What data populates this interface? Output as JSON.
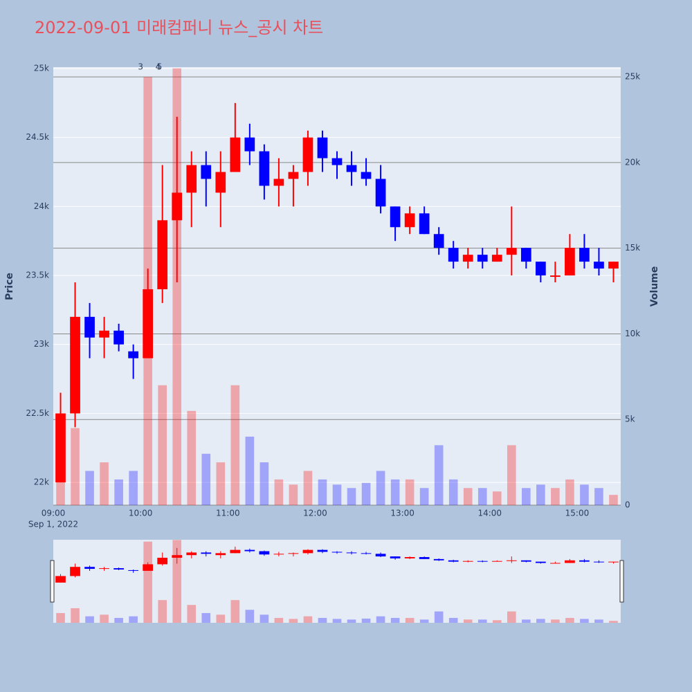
{
  "chart_data": {
    "type": "candlestick",
    "title": "2022-09-01 미래컴퍼니 뉴스_공시 차트",
    "y_label": "Price",
    "y2_label": "Volume",
    "x_date_label": "Sep 1, 2022",
    "x": [
      "09:00",
      "09:10",
      "09:20",
      "09:30",
      "09:40",
      "09:50",
      "10:00",
      "10:10",
      "10:20",
      "10:30",
      "10:40",
      "10:50",
      "11:00",
      "11:10",
      "11:20",
      "11:30",
      "11:40",
      "11:50",
      "12:00",
      "12:10",
      "12:20",
      "12:30",
      "12:40",
      "12:50",
      "13:00",
      "13:10",
      "13:20",
      "13:30",
      "13:40",
      "13:50",
      "14:00",
      "14:10",
      "14:20",
      "14:30",
      "14:40",
      "14:50",
      "15:00",
      "15:10",
      "15:20"
    ],
    "open": [
      22000,
      22500,
      23200,
      23050,
      23100,
      22950,
      22900,
      23400,
      23900,
      24100,
      24300,
      24100,
      24250,
      24500,
      24400,
      24150,
      24200,
      24250,
      24500,
      24350,
      24300,
      24250,
      24200,
      24000,
      23850,
      23950,
      23800,
      23700,
      23600,
      23650,
      23600,
      23650,
      23700,
      23600,
      23500,
      23500,
      23700,
      23600,
      23550
    ],
    "high": [
      22650,
      23450,
      23300,
      23200,
      23150,
      23000,
      23550,
      24300,
      24650,
      24400,
      24400,
      24400,
      24750,
      24600,
      24450,
      24350,
      24300,
      24550,
      24550,
      24400,
      24400,
      24350,
      24300,
      24000,
      24000,
      24000,
      23850,
      23750,
      23700,
      23700,
      23700,
      24000,
      23700,
      23600,
      23600,
      23800,
      23800,
      23700,
      23600
    ],
    "low": [
      22000,
      22400,
      22900,
      22900,
      22950,
      22750,
      22900,
      23300,
      23450,
      23850,
      24000,
      23850,
      24250,
      24300,
      24050,
      24000,
      24000,
      24150,
      24250,
      24200,
      24150,
      24150,
      23950,
      23750,
      23800,
      23800,
      23650,
      23550,
      23550,
      23550,
      23600,
      23500,
      23550,
      23450,
      23450,
      23500,
      23550,
      23500,
      23450
    ],
    "close": [
      22500,
      23200,
      23050,
      23100,
      23000,
      22900,
      23400,
      23900,
      24100,
      24300,
      24200,
      24250,
      24500,
      24400,
      24150,
      24200,
      24250,
      24500,
      24350,
      24300,
      24250,
      24200,
      24000,
      23850,
      23950,
      23800,
      23700,
      23600,
      23650,
      23600,
      23650,
      23700,
      23600,
      23500,
      23500,
      23700,
      23600,
      23550,
      23600
    ],
    "volume": [
      3000,
      4500,
      2000,
      2500,
      1500,
      2000,
      25000,
      7000,
      25500,
      5500,
      3000,
      2500,
      7000,
      4000,
      2500,
      1500,
      1200,
      2000,
      1500,
      1200,
      1000,
      1300,
      2000,
      1500,
      1500,
      1000,
      3500,
      1500,
      1000,
      1000,
      800,
      3500,
      1000,
      1200,
      1000,
      1500,
      1200,
      1000,
      600
    ],
    "increasing_color": "#ff0000",
    "decreasing_color": "#0000ff",
    "xlim": [
      "09:00",
      "15:30"
    ],
    "xticks": [
      "09:00",
      "10:00",
      "11:00",
      "12:00",
      "13:00",
      "14:00",
      "15:00"
    ],
    "ylim": [
      21835,
      25010
    ],
    "yticks": [
      {
        "value": 22000,
        "label": "22k"
      },
      {
        "value": 22500,
        "label": "22.5k"
      },
      {
        "value": 23000,
        "label": "23k"
      },
      {
        "value": 23500,
        "label": "23.5k"
      },
      {
        "value": 24000,
        "label": "24k"
      },
      {
        "value": 24500,
        "label": "24.5k"
      },
      {
        "value": 25000,
        "label": "25k"
      }
    ],
    "y2lim": [
      0,
      25570
    ],
    "y2ticks": [
      0,
      {
        "value": 5000,
        "label": "5k"
      },
      {
        "value": 10000,
        "label": "10k"
      },
      {
        "value": 15000,
        "label": "15k"
      },
      {
        "value": 20000,
        "label": "20k"
      },
      {
        "value": 25000,
        "label": "25k"
      }
    ],
    "annotations": [
      {
        "x": "10:00",
        "text": "3"
      },
      {
        "x": "10:12",
        "text": "4"
      },
      {
        "x": "10:13",
        "text": "5"
      }
    ]
  }
}
